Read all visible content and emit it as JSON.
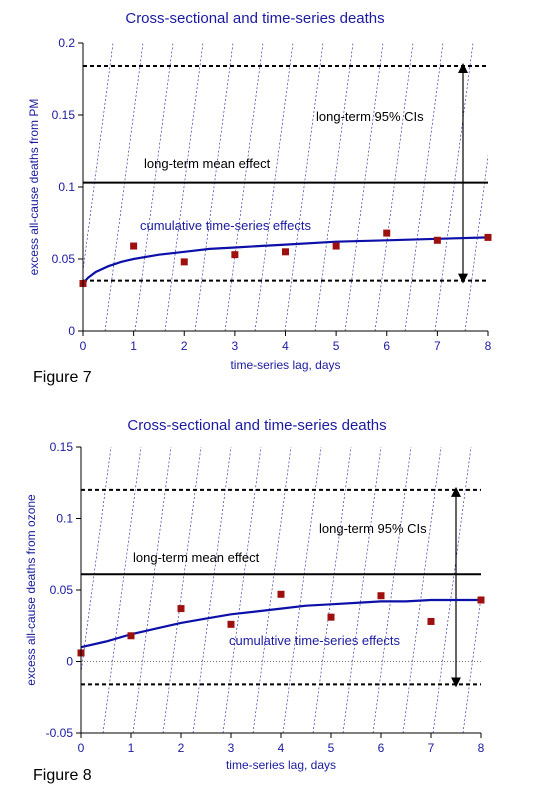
{
  "figures": [
    {
      "caption": "Figure 7"
    },
    {
      "caption": "Figure 8"
    }
  ],
  "colors": {
    "title": "#1a1aa0",
    "axis_label": "#1a1aa0",
    "tick_label": "#1a1aa0",
    "curve": "#0d10a8",
    "points": "#9e0f0f",
    "hatch": "#1a1aa0",
    "ref_lines": "#000000",
    "annotation_blue": "#1a1aa0",
    "annotation_black": "#000000"
  },
  "chart_data": [
    {
      "type": "scatter",
      "title": "Cross-sectional and time-series deaths",
      "xlabel": "time-series lag, days",
      "ylabel": "excess all-cause deaths from PM",
      "xlim": [
        0,
        8
      ],
      "ylim": [
        0,
        0.2
      ],
      "xticks": [
        "0",
        "1",
        "2",
        "3",
        "4",
        "5",
        "6",
        "7",
        "8"
      ],
      "yticks": [
        {
          "value": 0,
          "label": "0"
        },
        {
          "value": 0.05,
          "label": "0.05"
        },
        {
          "value": 0.1,
          "label": "0.1"
        },
        {
          "value": 0.15,
          "label": "0.15"
        },
        {
          "value": 0.2,
          "label": "0.2"
        }
      ],
      "points": [
        {
          "x": 0,
          "y": 0.033
        },
        {
          "x": 1,
          "y": 0.059
        },
        {
          "x": 2,
          "y": 0.048
        },
        {
          "x": 3,
          "y": 0.053
        },
        {
          "x": 4,
          "y": 0.055
        },
        {
          "x": 5,
          "y": 0.059
        },
        {
          "x": 6,
          "y": 0.068
        },
        {
          "x": 7,
          "y": 0.063
        },
        {
          "x": 8,
          "y": 0.065
        }
      ],
      "curve": {
        "x": [
          0,
          0.1,
          0.25,
          0.5,
          0.75,
          1,
          1.5,
          2,
          2.5,
          3,
          3.5,
          4,
          5,
          6,
          7,
          8
        ],
        "y": [
          0.033,
          0.037,
          0.041,
          0.045,
          0.048,
          0.05,
          0.053,
          0.055,
          0.057,
          0.058,
          0.059,
          0.06,
          0.062,
          0.063,
          0.064,
          0.065
        ]
      },
      "long_term_mean": 0.103,
      "ci_upper": 0.184,
      "ci_lower": 0.035,
      "zero_line": false,
      "grid": false,
      "annotations": {
        "ci": "long-term 95% CIs",
        "mean": "long-term mean effect",
        "ts": "cumulative time-series effects"
      }
    },
    {
      "type": "scatter",
      "title": "Cross-sectional and time-series deaths",
      "xlabel": "time-series lag, days",
      "ylabel": "excess all-cause deaths from ozone",
      "xlim": [
        0,
        8
      ],
      "ylim": [
        -0.05,
        0.15
      ],
      "xticks": [
        "0",
        "1",
        "2",
        "3",
        "4",
        "5",
        "6",
        "7",
        "8"
      ],
      "yticks": [
        {
          "value": -0.05,
          "label": "-0.05"
        },
        {
          "value": 0,
          "label": "0"
        },
        {
          "value": 0.05,
          "label": "0.05"
        },
        {
          "value": 0.1,
          "label": "0.1"
        },
        {
          "value": 0.15,
          "label": "0.15"
        }
      ],
      "points": [
        {
          "x": 0,
          "y": 0.006
        },
        {
          "x": 1,
          "y": 0.018
        },
        {
          "x": 2,
          "y": 0.037
        },
        {
          "x": 3,
          "y": 0.026
        },
        {
          "x": 4,
          "y": 0.047
        },
        {
          "x": 5,
          "y": 0.031
        },
        {
          "x": 6,
          "y": 0.046
        },
        {
          "x": 7,
          "y": 0.028
        },
        {
          "x": 8,
          "y": 0.043
        }
      ],
      "curve": {
        "x": [
          0,
          0.5,
          1,
          1.5,
          2,
          2.5,
          3,
          3.5,
          4,
          4.5,
          5,
          5.5,
          6,
          6.5,
          7,
          7.5,
          8
        ],
        "y": [
          0.01,
          0.014,
          0.019,
          0.023,
          0.027,
          0.03,
          0.033,
          0.035,
          0.037,
          0.039,
          0.04,
          0.041,
          0.042,
          0.042,
          0.043,
          0.043,
          0.043
        ]
      },
      "long_term_mean": 0.061,
      "ci_upper": 0.12,
      "ci_lower": -0.016,
      "zero_line": true,
      "grid": false,
      "annotations": {
        "ci": "long-term 95% CIs",
        "mean": "long-term mean effect",
        "ts": "cumulative time-series effects"
      }
    }
  ]
}
